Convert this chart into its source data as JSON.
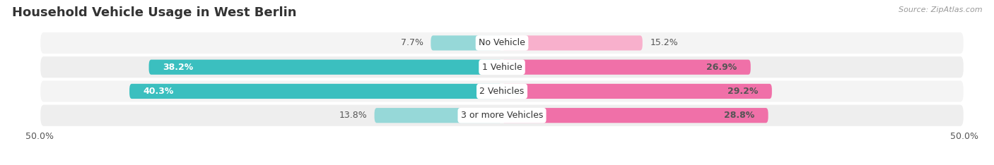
{
  "title": "Household Vehicle Usage in West Berlin",
  "source": "Source: ZipAtlas.com",
  "categories": [
    "No Vehicle",
    "1 Vehicle",
    "2 Vehicles",
    "3 or more Vehicles"
  ],
  "owner_values": [
    7.7,
    38.2,
    40.3,
    13.8
  ],
  "renter_values": [
    15.2,
    26.9,
    29.2,
    28.8
  ],
  "owner_color": "#3BBFBF",
  "renter_color": "#F070A8",
  "owner_color_light": "#96D8D8",
  "renter_color_light": "#F8B0CC",
  "axis_limit": 50.0,
  "bar_height": 0.62,
  "row_bg_colors": [
    "#F4F4F4",
    "#EEEEEE",
    "#F4F4F4",
    "#EEEEEE"
  ],
  "title_fontsize": 13,
  "label_fontsize": 9,
  "tick_fontsize": 9,
  "legend_fontsize": 9
}
